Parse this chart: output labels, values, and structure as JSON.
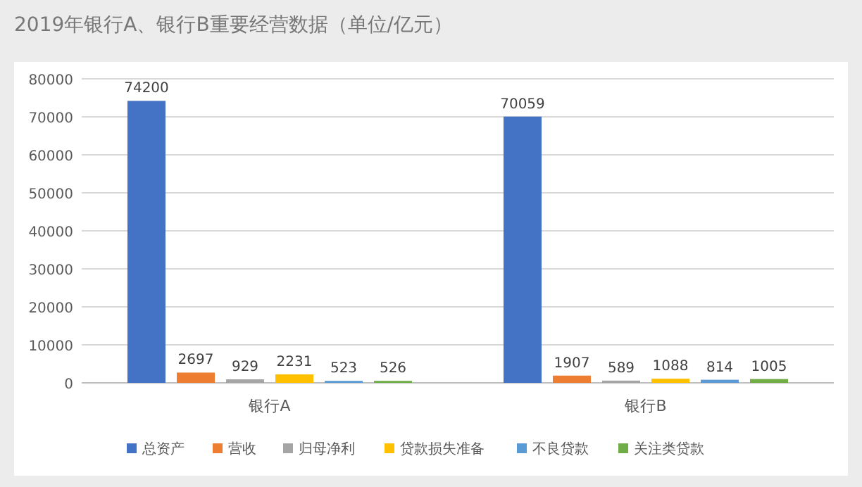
{
  "chart_data": {
    "type": "bar",
    "title": "2019年银行A、银行B重要经营数据（单位/亿元）",
    "categories": [
      "银行A",
      "银行B"
    ],
    "series": [
      {
        "name": "总资产",
        "color": "#4472c4",
        "values": [
          74200,
          70059
        ]
      },
      {
        "name": "营收",
        "color": "#ed7d31",
        "values": [
          2697,
          1907
        ]
      },
      {
        "name": "归母净利",
        "color": "#a5a5a5",
        "values": [
          929,
          589
        ]
      },
      {
        "name": "贷款损失准备",
        "color": "#ffc000",
        "values": [
          2231,
          1088
        ]
      },
      {
        "name": "不良贷款",
        "color": "#5b9bd5",
        "values": [
          523,
          814
        ]
      },
      {
        "name": "关注类贷款",
        "color": "#70ad47",
        "values": [
          526,
          1005
        ]
      }
    ],
    "ylim": [
      0,
      80000
    ],
    "yticks": [
      0,
      10000,
      20000,
      30000,
      40000,
      50000,
      60000,
      70000,
      80000
    ],
    "grid": "y",
    "legend": "bottom",
    "data_labels": true
  }
}
